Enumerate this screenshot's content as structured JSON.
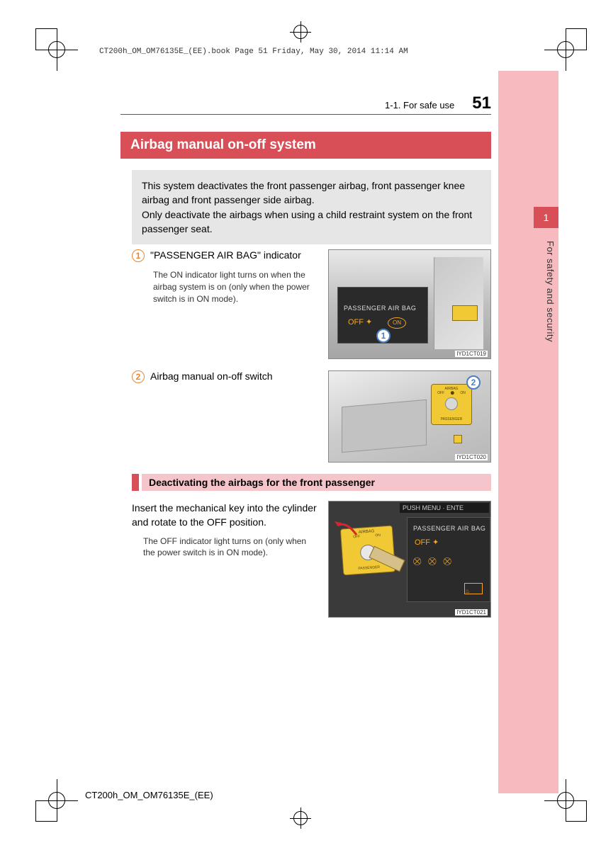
{
  "meta": {
    "header_line": "CT200h_OM_OM76135E_(EE).book  Page 51  Friday, May 30, 2014  11:14 AM",
    "footer_code": "CT200h_OM_OM76135E_(EE)"
  },
  "header": {
    "section_ref": "1-1. For safe use",
    "page_number": "51"
  },
  "side_tab": {
    "chapter_number": "1",
    "chapter_title": "For safety and security"
  },
  "title": "Airbag manual on-off system",
  "intro": "This system deactivates the front passenger airbag, front passenger knee airbag and front passenger side airbag.\nOnly deactivate the airbags when using a child restraint system on the front passenger seat.",
  "items": [
    {
      "num": "1",
      "label": "\"PASSENGER AIR BAG\" indicator",
      "desc": "The ON indicator light turns on when the airbag system is on (only when the power switch is in ON mode).",
      "image": {
        "screen_label": "PASSENGER  AIR BAG",
        "off_text": "OFF",
        "on_text": "ON",
        "callout": "1",
        "tag": "IYD1CT019"
      }
    },
    {
      "num": "2",
      "label": "Airbag manual on-off switch",
      "desc": "",
      "image": {
        "sticker_lines": [
          "AIRBAG",
          "ON",
          "OFF",
          "PASSENGER"
        ],
        "callout": "2",
        "tag": "IYD1CT020"
      }
    }
  ],
  "subsection": {
    "title": "Deactivating the airbags for the front passenger",
    "body": "Insert the mechanical key into the cylinder and rotate to the OFF position.",
    "note": "The OFF indicator light turns on (only when the power switch is in ON mode).",
    "image": {
      "menu_text": "PUSH  MENU · ENTE",
      "screen_label": "PASSENGER  AIR BAG",
      "off_text": "OFF",
      "sticker_lines": [
        "AIRBAG",
        "OFF",
        "ON",
        "PASSENGER"
      ],
      "tag": "IYD1CT021"
    }
  },
  "colors": {
    "accent_red": "#d94f57",
    "accent_red_line": "#d4252f",
    "pink_tab": "#f7babf",
    "pink_light": "#f4c5ca",
    "circled_orange": "#e8862e",
    "callout_blue": "#4a7fc4",
    "amber": "#f5a623",
    "sticker_yellow": "#f0c935",
    "intro_bg": "#e6e6e6"
  }
}
